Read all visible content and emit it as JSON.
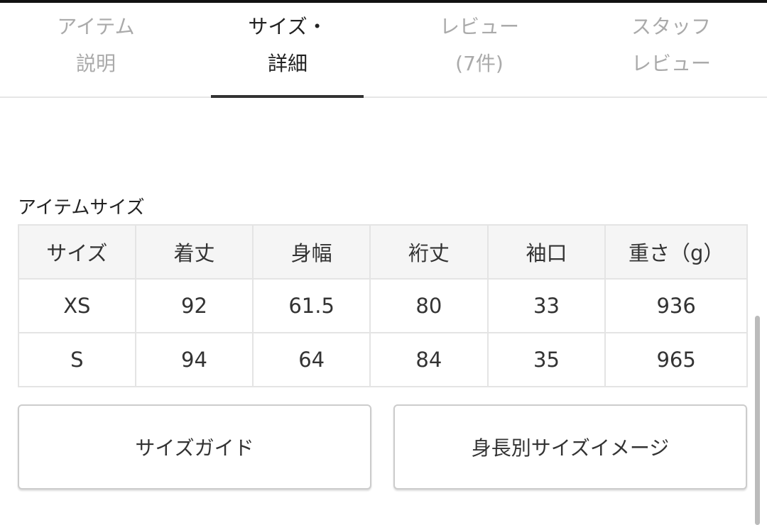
{
  "tabs": [
    {
      "line1": "アイテム",
      "line2": "説明"
    },
    {
      "line1": "サイズ・",
      "line2": "詳細"
    },
    {
      "line1": "レビュー",
      "line2": "(7件)"
    },
    {
      "line1": "スタッフ",
      "line2": "レビュー"
    }
  ],
  "active_tab": 1,
  "section_title": "アイテムサイズ",
  "size_table": {
    "headers": [
      "サイズ",
      "着丈",
      "身幅",
      "裄丈",
      "袖口",
      "重さ（g）"
    ],
    "rows": [
      [
        "XS",
        "92",
        "61.5",
        "80",
        "33",
        "936"
      ],
      [
        "S",
        "94",
        "64",
        "84",
        "35",
        "965"
      ]
    ]
  },
  "buttons": {
    "size_guide": "サイズガイド",
    "height_image": "身長別サイズイメージ"
  }
}
